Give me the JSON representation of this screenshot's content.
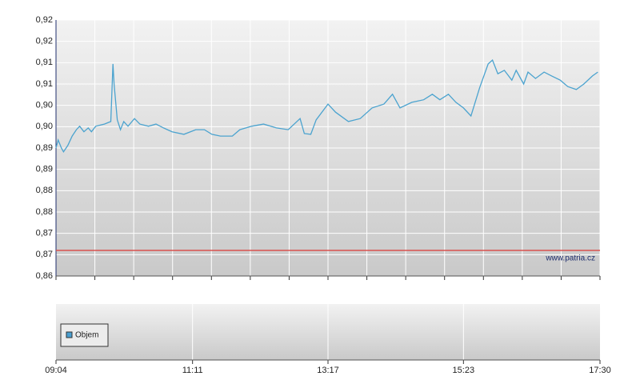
{
  "chart_data": [
    {
      "type": "line",
      "x": [
        "09:04",
        "09:06",
        "09:09",
        "09:11",
        "09:15",
        "09:19",
        "09:23",
        "09:26",
        "09:30",
        "09:34",
        "09:37",
        "09:41",
        "09:49",
        "09:55",
        "09:57",
        "09:58",
        "10:01",
        "10:04",
        "10:07",
        "10:11",
        "10:17",
        "10:22",
        "10:30",
        "10:37",
        "10:44",
        "10:52",
        "11:03",
        "11:14",
        "11:22",
        "11:29",
        "11:37",
        "11:48",
        "11:55",
        "12:06",
        "12:17",
        "12:29",
        "12:40",
        "12:51",
        "12:55",
        "13:01",
        "13:06",
        "13:17",
        "13:24",
        "13:36",
        "13:47",
        "13:58",
        "14:09",
        "14:17",
        "14:24",
        "14:35",
        "14:46",
        "14:54",
        "15:01",
        "15:09",
        "15:16",
        "15:23",
        "15:30",
        "15:38",
        "15:46",
        "15:50",
        "15:55",
        "16:01",
        "16:08",
        "16:12",
        "16:19",
        "16:23",
        "16:30",
        "16:38",
        "16:45",
        "16:53",
        "17:00",
        "17:08",
        "17:15",
        "17:23",
        "17:28"
      ],
      "series": [
        {
          "color": "#4ba3cf",
          "values": [
            0.89,
            0.8919,
            0.89,
            0.8891,
            0.8906,
            0.8928,
            0.8943,
            0.8951,
            0.8938,
            0.8947,
            0.8938,
            0.8951,
            0.8956,
            0.8962,
            0.9097,
            0.905,
            0.8966,
            0.8943,
            0.8962,
            0.8951,
            0.8969,
            0.8956,
            0.8951,
            0.8956,
            0.8947,
            0.8938,
            0.8932,
            0.8943,
            0.8943,
            0.8932,
            0.8928,
            0.8928,
            0.8943,
            0.8951,
            0.8956,
            0.8947,
            0.8943,
            0.8969,
            0.8934,
            0.8932,
            0.8966,
            0.9003,
            0.8984,
            0.8962,
            0.8969,
            0.8994,
            0.9003,
            0.9026,
            0.8994,
            0.9007,
            0.9013,
            0.9026,
            0.9013,
            0.9026,
            0.9007,
            0.8994,
            0.8975,
            0.9041,
            0.9097,
            0.9106,
            0.9074,
            0.9082,
            0.9059,
            0.9082,
            0.905,
            0.9078,
            0.9063,
            0.9078,
            0.9069,
            0.9059,
            0.9044,
            0.9037,
            0.905,
            0.9069,
            0.9078
          ]
        }
      ],
      "xlim": [
        "09:04",
        "17:30"
      ],
      "ylim": [
        0.86,
        0.92
      ],
      "yticks": [
        {
          "value": 0.86,
          "label": "0,86"
        },
        {
          "value": 0.865,
          "label": "0,87"
        },
        {
          "value": 0.87,
          "label": "0,87"
        },
        {
          "value": 0.875,
          "label": "0,88"
        },
        {
          "value": 0.88,
          "label": "0,88"
        },
        {
          "value": 0.885,
          "label": "0,89"
        },
        {
          "value": 0.89,
          "label": "0,89"
        },
        {
          "value": 0.895,
          "label": "0,90"
        },
        {
          "value": 0.9,
          "label": "0,90"
        },
        {
          "value": 0.905,
          "label": "0,91"
        },
        {
          "value": 0.91,
          "label": "0,91"
        },
        {
          "value": 0.915,
          "label": "0,92"
        },
        {
          "value": 0.92,
          "label": "0,92"
        }
      ],
      "reference_line": {
        "value": 0.866,
        "color": "#d9534f"
      },
      "watermark": "www.patria.cz",
      "grid": true
    },
    {
      "type": "bar",
      "series": [
        {
          "name": "Objem",
          "color": "#4a9fd0",
          "values": []
        }
      ],
      "xlim": [
        "09:04",
        "17:30"
      ],
      "xticks": [
        "09:04",
        "11:11",
        "13:17",
        "15:23",
        "17:30"
      ],
      "grid": true
    }
  ]
}
